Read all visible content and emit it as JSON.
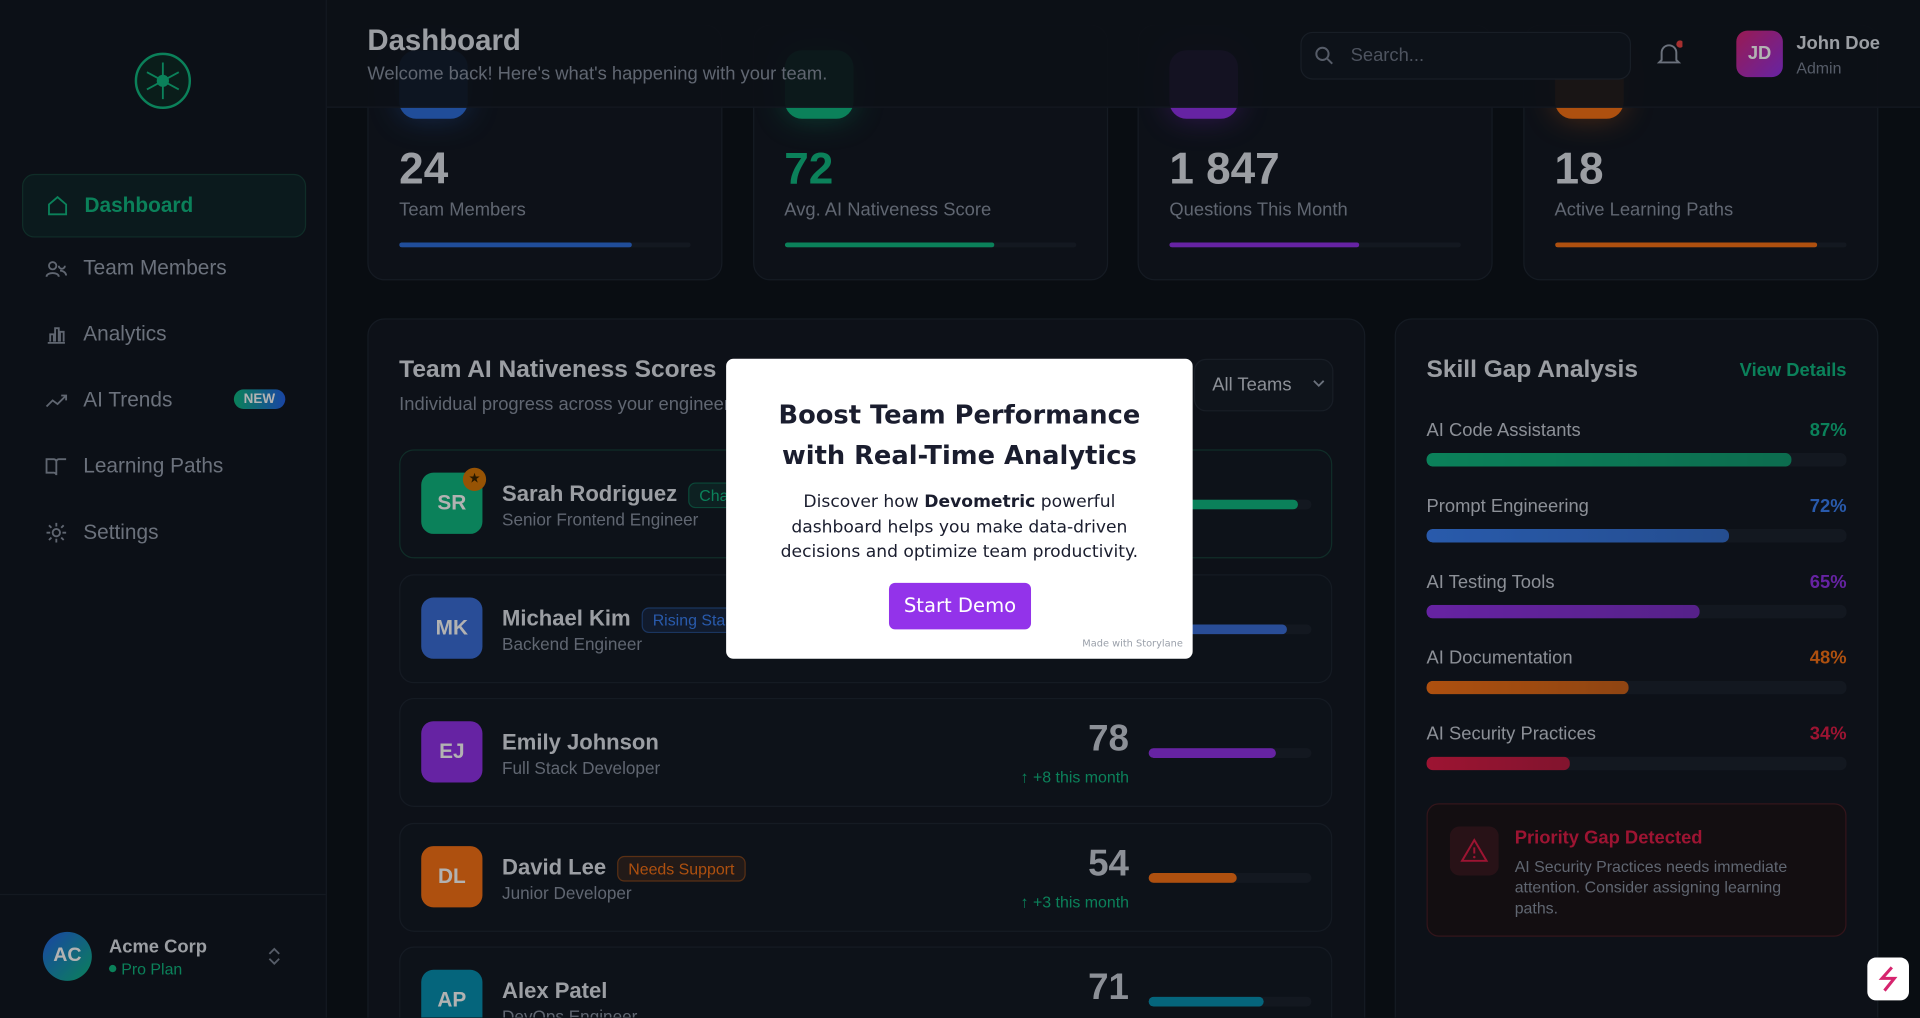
{
  "sidebar": {
    "nav": [
      {
        "label": "Dashboard",
        "active": true
      },
      {
        "label": "Team Members"
      },
      {
        "label": "Analytics"
      },
      {
        "label": "AI Trends",
        "badge": "NEW"
      },
      {
        "label": "Learning Paths"
      },
      {
        "label": "Settings"
      }
    ],
    "workspace": {
      "initials": "AC",
      "name": "Acme Corp",
      "plan": "Pro Plan"
    }
  },
  "header": {
    "title": "Dashboard",
    "subtitle": "Welcome back! Here's what's happening with your team.",
    "search_placeholder": "Search...",
    "user": {
      "initials": "JD",
      "name": "John Doe",
      "role": "Admin"
    }
  },
  "stats": [
    {
      "value": "24",
      "label": "Team Members",
      "color": "#2f6fdc"
    },
    {
      "value": "72",
      "label": "Avg. AI Nativeness Score",
      "color": "#10b981"
    },
    {
      "value": "1 847",
      "label": "Questions This Month",
      "color": "#9333ea"
    },
    {
      "value": "18",
      "label": "Active Learning Paths",
      "color": "#f97316"
    }
  ],
  "scores": {
    "title": "Team AI Nativeness Scores",
    "subtitle": "Individual progress across your engineering team",
    "filter": "All Teams",
    "members": [
      {
        "initials": "SR",
        "name": "Sarah Rodriguez",
        "badge": "Champion",
        "badge_color": "#10b981",
        "role": "Senior Frontend Engineer",
        "color": "#10b981"
      },
      {
        "initials": "MK",
        "name": "Michael Kim",
        "badge": "Rising Star",
        "badge_color": "#3b82f6",
        "role": "Backend Engineer",
        "color": "#3b6fd8"
      },
      {
        "initials": "EJ",
        "name": "Emily Johnson",
        "role": "Full Stack Developer",
        "score": 78,
        "change": "+8 this month",
        "color": "#9333ea"
      },
      {
        "initials": "DL",
        "name": "David Lee",
        "badge": "Needs Support",
        "badge_color": "#f97316",
        "role": "Junior Developer",
        "score": 54,
        "change": "+3 this month",
        "color": "#f97316"
      },
      {
        "initials": "AP",
        "name": "Alex Patel",
        "role": "DevOps Engineer",
        "score": 71,
        "color": "#0891b2"
      }
    ]
  },
  "skills": {
    "title": "Skill Gap Analysis",
    "link": "View Details",
    "items": [
      {
        "name": "AI Code Assistants",
        "value": 87,
        "label": "87%",
        "color": "#10b981"
      },
      {
        "name": "Prompt Engineering",
        "value": 72,
        "label": "72%",
        "color": "#3b82f6"
      },
      {
        "name": "AI Testing Tools",
        "value": 65,
        "label": "65%",
        "color": "#9333ea"
      },
      {
        "name": "AI Documentation",
        "value": 48,
        "label": "48%",
        "color": "#f97316"
      },
      {
        "name": "AI Security Practices",
        "value": 34,
        "label": "34%",
        "color": "#e11d48"
      }
    ],
    "alert": {
      "title": "Priority Gap Detected",
      "text": "AI Security Practices needs immediate attention. Consider assigning learning paths."
    }
  },
  "modal": {
    "title": "Boost Team Performance with Real-Time Analytics",
    "body_before": "Discover how",
    "brand": "Devometric",
    "body_after": "powerful dashboard helps you make data-driven decisions and optimize team productivity.",
    "button": "Start Demo",
    "footer": "Made with Storylane"
  }
}
